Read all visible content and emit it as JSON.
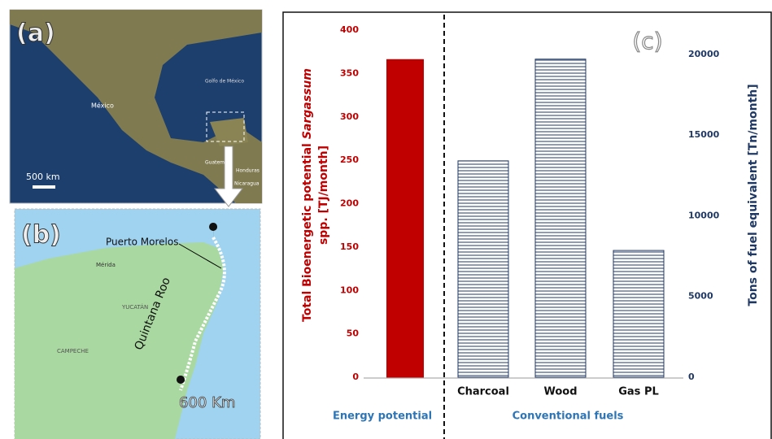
{
  "panel_a": {
    "label": "(a)",
    "scale": "500 km",
    "places": [
      "México",
      "Golfo de México",
      "Guatemala",
      "Honduras",
      "Nicaragua"
    ]
  },
  "panel_b": {
    "label": "(b)",
    "places": [
      "Puerto Morelos",
      "Mérida",
      "Quintana Roo",
      "YUCATÁN",
      "CAMPECHE"
    ],
    "distance": "600 Km"
  },
  "chart_data": {
    "type": "bar",
    "label": "(c)",
    "ylabel": {
      "line1": "Total Bioenergetic potential",
      "italic": "Sargassum",
      "line2": "spp. [TJ/month]"
    },
    "y2label": "Tons of fuel equivalent [Tn/month]",
    "categories": [
      null,
      "Charcoal",
      "Wood",
      "Gas PL"
    ],
    "series": [
      {
        "name": "Energy potential",
        "color": "#c00000",
        "values": [
          366,
          null,
          null,
          null
        ]
      },
      {
        "name": "Conventional fuels",
        "color": "#1f3864",
        "axis": "y2",
        "values": [
          null,
          13400,
          19700,
          7850
        ]
      }
    ],
    "ylim": [
      0,
      400
    ],
    "yticks": [
      0,
      50,
      100,
      150,
      200,
      250,
      300,
      350,
      400
    ],
    "y2lim": [
      0,
      21500
    ],
    "y2ticks": [
      0,
      5000,
      10000,
      15000,
      20000
    ]
  }
}
